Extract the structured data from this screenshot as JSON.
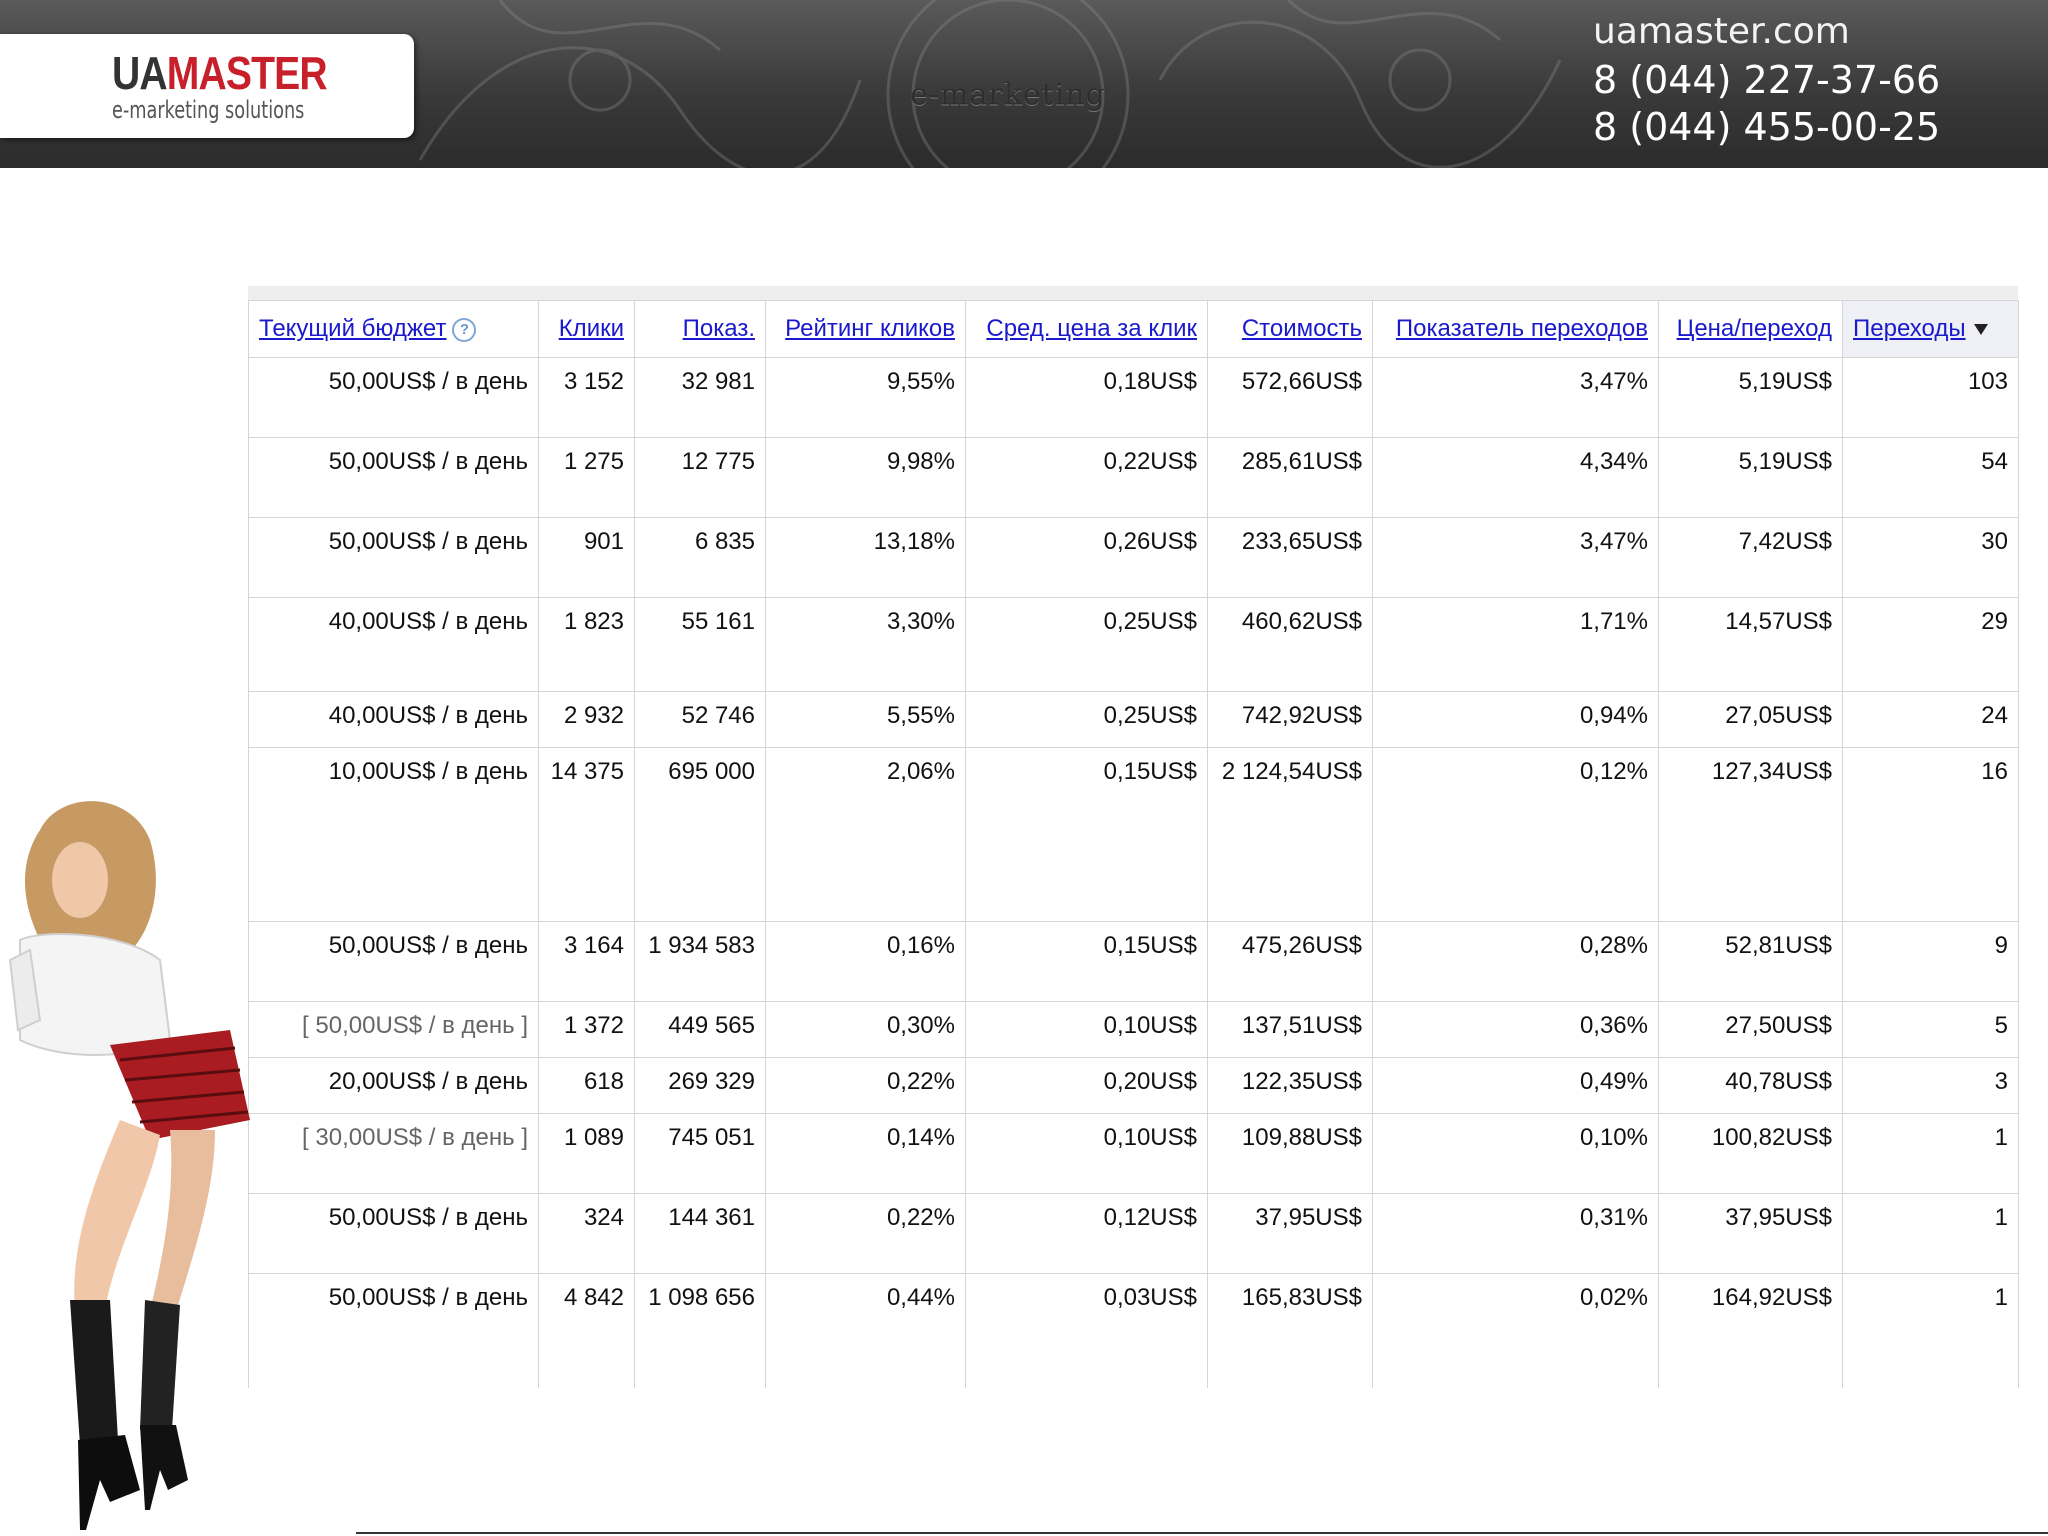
{
  "header": {
    "logo": {
      "ua": "UA",
      "master": "MASTER",
      "tagline": "e-marketing solutions"
    },
    "emblem": "e-marketing",
    "site": "uamaster.com",
    "phones": [
      "8 (044) 227-37-66",
      "8 (044) 455-00-25"
    ]
  },
  "table": {
    "columns": [
      "Текущий бюджет",
      "Клики",
      "Показ.",
      "Рейтинг кликов",
      "Сред. цена за клик",
      "Стоимость",
      "Показатель переходов",
      "Цена/переход",
      "Переходы"
    ],
    "sorted_column": "Переходы",
    "rows": [
      {
        "budget": "50,00US$ / в день",
        "clicks": "3 152",
        "impr": "32 981",
        "ctr": "9,55%",
        "cpc": "0,18US$",
        "cost": "572,66US$",
        "conv_rate": "3,47%",
        "cost_conv": "5,19US$",
        "conv": "103"
      },
      {
        "budget": "50,00US$ / в день",
        "clicks": "1 275",
        "impr": "12 775",
        "ctr": "9,98%",
        "cpc": "0,22US$",
        "cost": "285,61US$",
        "conv_rate": "4,34%",
        "cost_conv": "5,19US$",
        "conv": "54"
      },
      {
        "budget": "50,00US$ / в день",
        "clicks": "901",
        "impr": "6 835",
        "ctr": "13,18%",
        "cpc": "0,26US$",
        "cost": "233,65US$",
        "conv_rate": "3,47%",
        "cost_conv": "7,42US$",
        "conv": "30"
      },
      {
        "budget": "40,00US$ / в день",
        "clicks": "1 823",
        "impr": "55 161",
        "ctr": "3,30%",
        "cpc": "0,25US$",
        "cost": "460,62US$",
        "conv_rate": "1,71%",
        "cost_conv": "14,57US$",
        "conv": "29"
      },
      {
        "budget": "40,00US$ / в день",
        "clicks": "2 932",
        "impr": "52 746",
        "ctr": "5,55%",
        "cpc": "0,25US$",
        "cost": "742,92US$",
        "conv_rate": "0,94%",
        "cost_conv": "27,05US$",
        "conv": "24"
      },
      {
        "budget": "10,00US$ / в день",
        "clicks": "14 375",
        "impr": "695 000",
        "ctr": "2,06%",
        "cpc": "0,15US$",
        "cost": "2 124,54US$",
        "conv_rate": "0,12%",
        "cost_conv": "127,34US$",
        "conv": "16"
      },
      {
        "budget": "50,00US$ / в день",
        "clicks": "3 164",
        "impr": "1 934 583",
        "ctr": "0,16%",
        "cpc": "0,15US$",
        "cost": "475,26US$",
        "conv_rate": "0,28%",
        "cost_conv": "52,81US$",
        "conv": "9"
      },
      {
        "budget": "[ 50,00US$ / в день ]",
        "paused": true,
        "clicks": "1 372",
        "impr": "449 565",
        "ctr": "0,30%",
        "cpc": "0,10US$",
        "cost": "137,51US$",
        "conv_rate": "0,36%",
        "cost_conv": "27,50US$",
        "conv": "5"
      },
      {
        "budget": "20,00US$ / в день",
        "clicks": "618",
        "impr": "269 329",
        "ctr": "0,22%",
        "cpc": "0,20US$",
        "cost": "122,35US$",
        "conv_rate": "0,49%",
        "cost_conv": "40,78US$",
        "conv": "3"
      },
      {
        "budget": "[ 30,00US$ / в день ]",
        "paused": true,
        "clicks": "1 089",
        "impr": "745 051",
        "ctr": "0,14%",
        "cpc": "0,10US$",
        "cost": "109,88US$",
        "conv_rate": "0,10%",
        "cost_conv": "100,82US$",
        "conv": "1"
      },
      {
        "budget": "50,00US$ / в день",
        "clicks": "324",
        "impr": "144 361",
        "ctr": "0,22%",
        "cpc": "0,12US$",
        "cost": "37,95US$",
        "conv_rate": "0,31%",
        "cost_conv": "37,95US$",
        "conv": "1"
      },
      {
        "budget": "50,00US$ / в день",
        "clicks": "4 842",
        "impr": "1 098 656",
        "ctr": "0,44%",
        "cpc": "0,03US$",
        "cost": "165,83US$",
        "conv_rate": "0,02%",
        "cost_conv": "164,92US$",
        "conv": "1"
      }
    ]
  },
  "icons": {
    "help": "question-circle-icon",
    "sort": "sort-descending-icon"
  },
  "colors": {
    "link": "#1a1acc",
    "brand_red": "#c8202a",
    "banner_dark": "#2b2b2b"
  }
}
